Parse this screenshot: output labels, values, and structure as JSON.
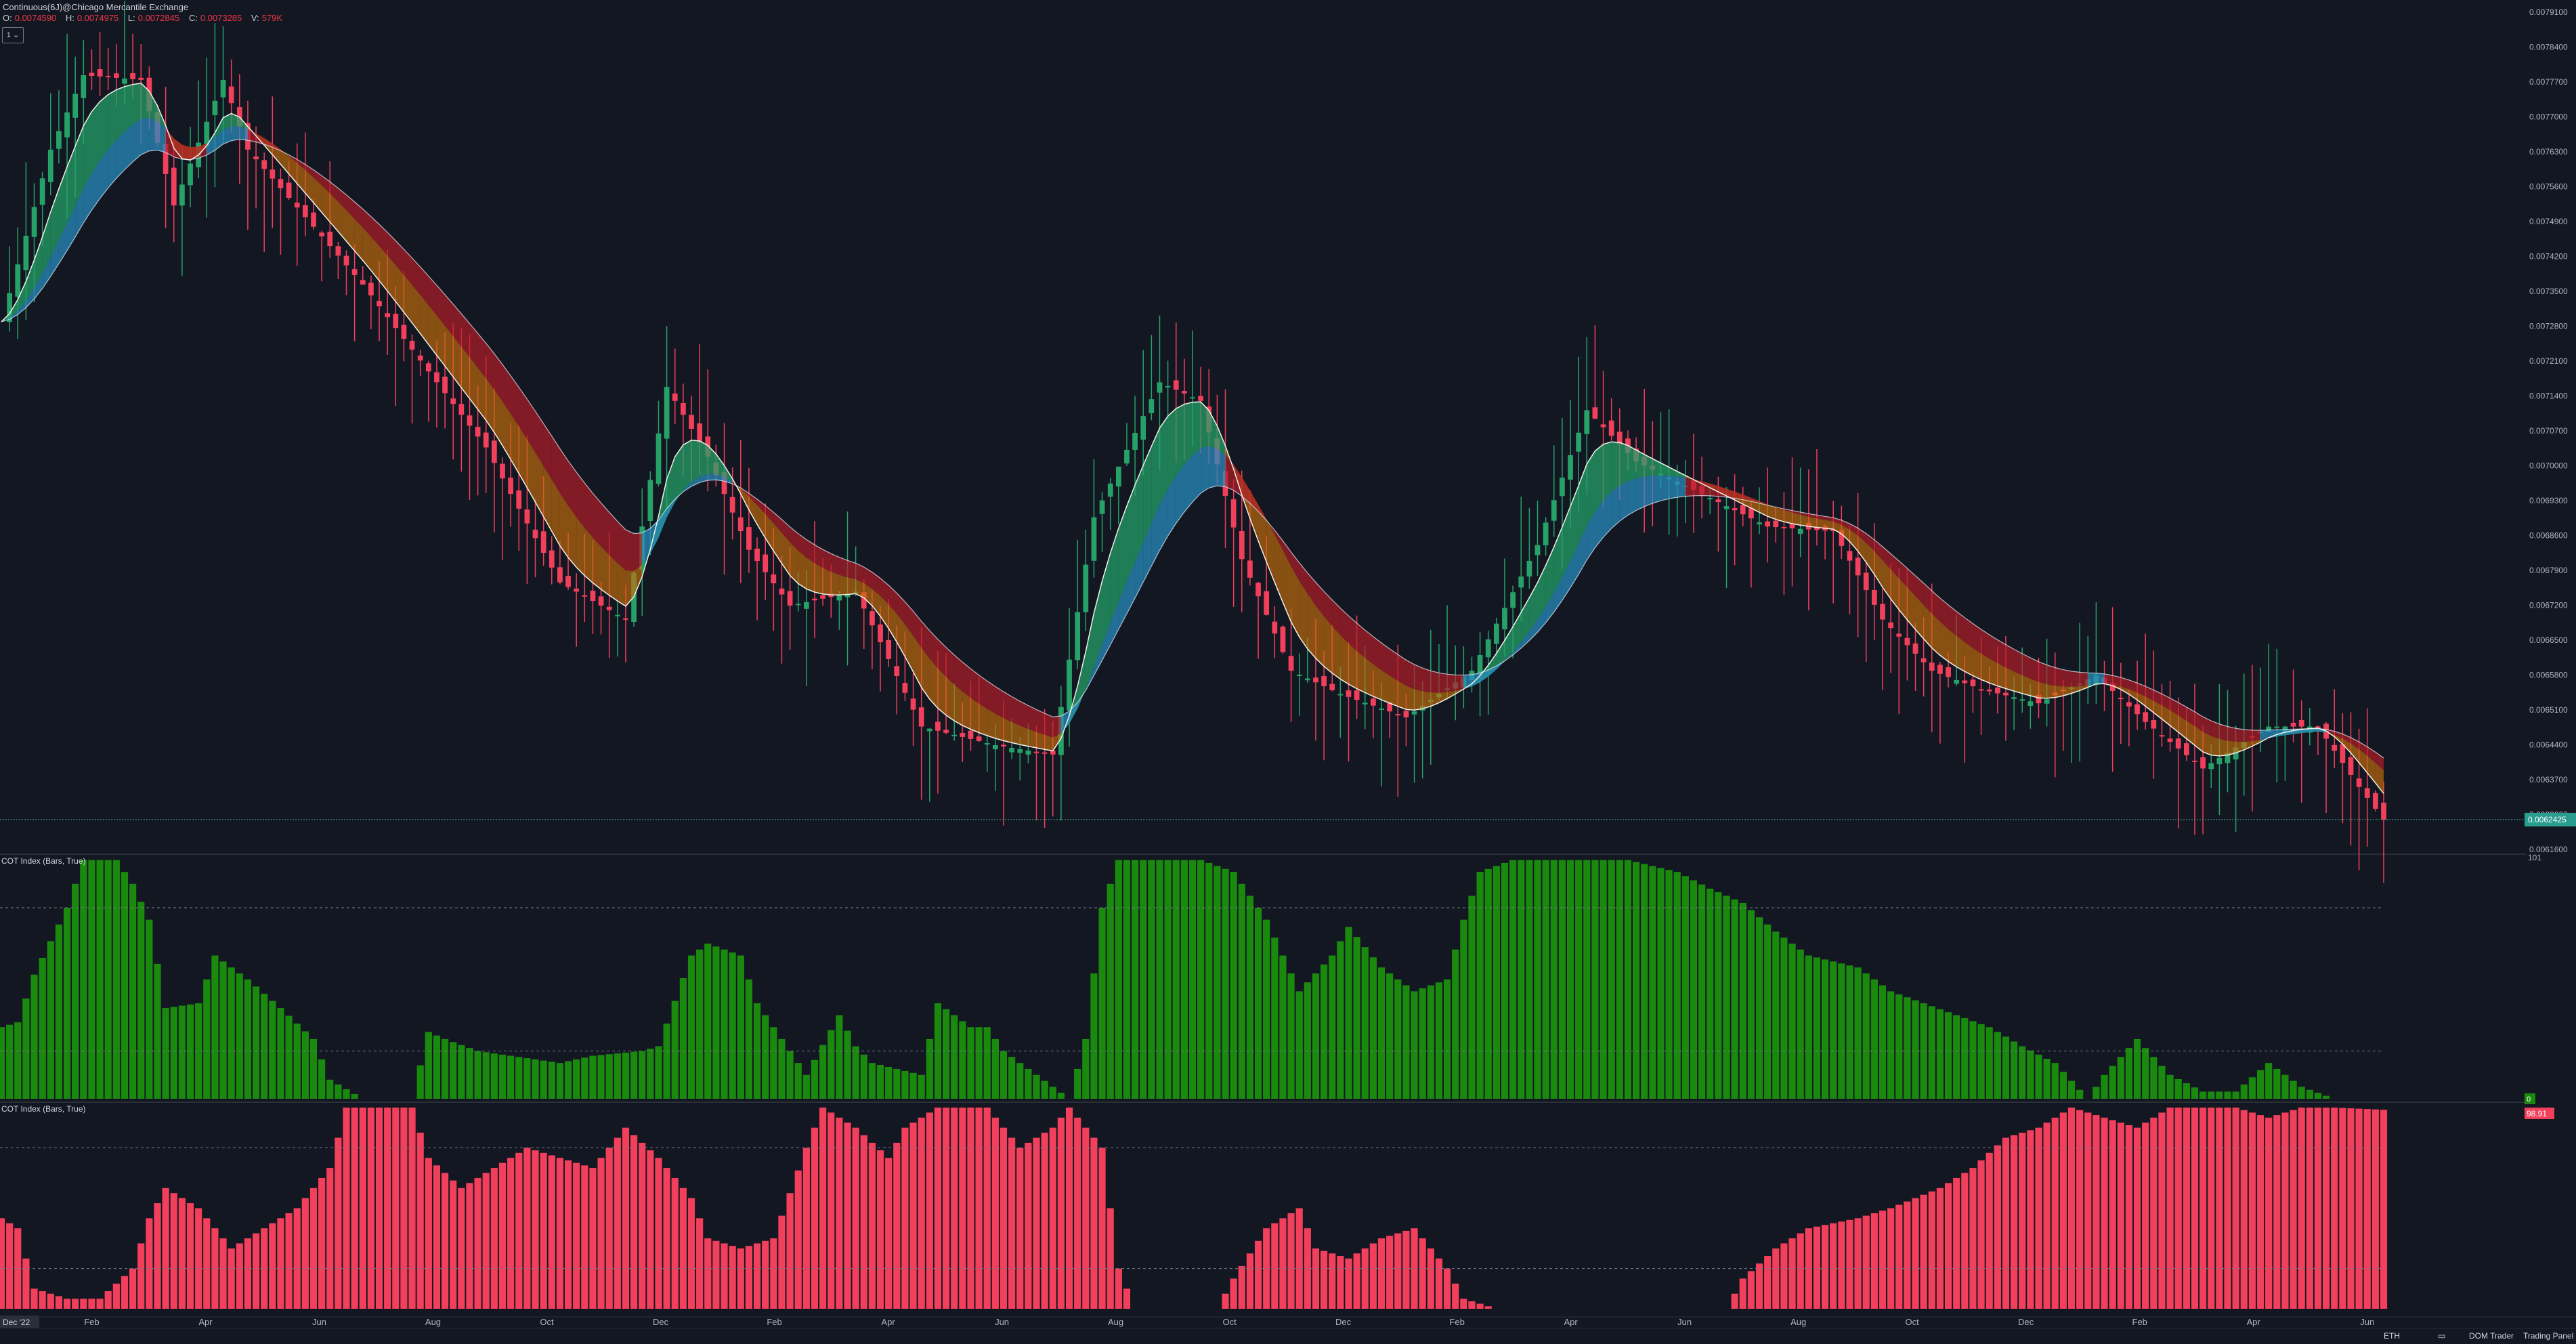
{
  "header": {
    "title": "Continuous(6J)@Chicago Mercantile Exchange",
    "ohlcv": [
      {
        "k": "O:",
        "v": "0.0074590"
      },
      {
        "k": "H:",
        "v": "0.0074975"
      },
      {
        "k": "L:",
        "v": "0.0072845"
      },
      {
        "k": "C:",
        "v": "0.0073285"
      },
      {
        "k": "V:",
        "v": "579K"
      }
    ],
    "timeframe_button": "1 ⌄"
  },
  "price_axis": {
    "ticks": [
      "0.0079100",
      "0.0078400",
      "0.0077700",
      "0.0077000",
      "0.0076300",
      "0.0075600",
      "0.0074900",
      "0.0074200",
      "0.0073500",
      "0.0072800",
      "0.0072100",
      "0.0071400",
      "0.0070700",
      "0.0070000",
      "0.0069300",
      "0.0068600",
      "0.0067900",
      "0.0067200",
      "0.0066500",
      "0.0065800",
      "0.0065100",
      "0.0064400",
      "0.0063700",
      "0.0063000",
      "0.0061600"
    ],
    "current_price_label": "0.0062425"
  },
  "indicator1": {
    "title": "COT Index (Bars, True)",
    "top_label": "101",
    "last_value_label": "0",
    "color": "#1a8a0e"
  },
  "indicator2": {
    "title": "COT Index (Bars, True)",
    "last_value_label": "98.91",
    "color": "#f23f5b"
  },
  "time_axis": {
    "start_label": "Dec '22",
    "labels": [
      "Feb",
      "Apr",
      "Jun",
      "Aug",
      "Oct",
      "Dec",
      "Feb",
      "Apr",
      "Jun",
      "Aug",
      "Oct",
      "Dec",
      "Feb",
      "Apr",
      "Jun",
      "Aug",
      "Oct",
      "Dec",
      "Feb",
      "Apr",
      "Jun"
    ]
  },
  "bottom_bar": {
    "currency": "ETH",
    "dom_trader": "DOM Trader",
    "trading_panel": "Trading Panel"
  },
  "colors": {
    "up": "#26a269",
    "down": "#f23f5b",
    "background": "#131722"
  },
  "chart_data": [
    {
      "type": "candlestick",
      "title": "Continuous(6J)@Chicago Mercantile Exchange",
      "ylim": [
        0.00613,
        0.00795
      ],
      "approx_close_path": [
        [
          0,
          0.00727
        ],
        [
          6,
          0.00764
        ],
        [
          10,
          0.0078
        ],
        [
          17,
          0.00779
        ],
        [
          21,
          0.00752
        ],
        [
          27,
          0.00779
        ],
        [
          30,
          0.00764
        ],
        [
          44,
          0.00735
        ],
        [
          59,
          0.007
        ],
        [
          62,
          0.0069
        ],
        [
          68,
          0.00671
        ],
        [
          76,
          0.00663
        ],
        [
          81,
          0.00713
        ],
        [
          86,
          0.00698
        ],
        [
          91,
          0.00678
        ],
        [
          96,
          0.00666
        ],
        [
          104,
          0.00669
        ],
        [
          112,
          0.0064
        ],
        [
          121,
          0.00636
        ],
        [
          128,
          0.00634
        ],
        [
          133,
          0.00685
        ],
        [
          141,
          0.00714
        ],
        [
          146,
          0.0071
        ],
        [
          151,
          0.00676
        ],
        [
          157,
          0.00652
        ],
        [
          163,
          0.00647
        ],
        [
          171,
          0.00642
        ],
        [
          179,
          0.00652
        ],
        [
          187,
          0.00679
        ],
        [
          193,
          0.00708
        ],
        [
          199,
          0.00697
        ],
        [
          207,
          0.0069
        ],
        [
          215,
          0.00683
        ],
        [
          223,
          0.00682
        ],
        [
          229,
          0.00663
        ],
        [
          235,
          0.00652
        ],
        [
          241,
          0.00648
        ],
        [
          248,
          0.00645
        ],
        [
          255,
          0.00651
        ],
        [
          261,
          0.00641
        ],
        [
          268,
          0.00631
        ],
        [
          276,
          0.0064
        ],
        [
          282,
          0.0064
        ],
        [
          287,
          0.00627
        ],
        [
          290,
          0.0062
        ]
      ]
    },
    {
      "type": "bar",
      "title": "COT Index (Bars, True)",
      "ylim": [
        0,
        101
      ],
      "approx_path": [
        [
          0,
          30
        ],
        [
          2,
          32
        ],
        [
          4,
          52
        ],
        [
          8,
          80
        ],
        [
          10,
          100
        ],
        [
          14,
          100
        ],
        [
          16,
          90
        ],
        [
          18,
          75
        ],
        [
          20,
          38
        ],
        [
          24,
          40
        ],
        [
          26,
          60
        ],
        [
          30,
          50
        ],
        [
          34,
          38
        ],
        [
          38,
          25
        ],
        [
          40,
          8
        ],
        [
          44,
          0
        ],
        [
          50,
          0
        ],
        [
          52,
          28
        ],
        [
          54,
          25
        ],
        [
          58,
          20
        ],
        [
          62,
          18
        ],
        [
          68,
          15
        ],
        [
          72,
          18
        ],
        [
          78,
          20
        ],
        [
          80,
          22
        ],
        [
          84,
          60
        ],
        [
          86,
          65
        ],
        [
          90,
          60
        ],
        [
          92,
          40
        ],
        [
          96,
          20
        ],
        [
          98,
          10
        ],
        [
          102,
          35
        ],
        [
          104,
          22
        ],
        [
          106,
          15
        ],
        [
          112,
          10
        ],
        [
          114,
          40
        ],
        [
          118,
          30
        ],
        [
          120,
          30
        ],
        [
          122,
          20
        ],
        [
          126,
          10
        ],
        [
          130,
          0
        ],
        [
          132,
          25
        ],
        [
          134,
          80
        ],
        [
          136,
          100
        ],
        [
          146,
          100
        ],
        [
          150,
          95
        ],
        [
          154,
          75
        ],
        [
          158,
          45
        ],
        [
          162,
          60
        ],
        [
          164,
          72
        ],
        [
          168,
          55
        ],
        [
          172,
          45
        ],
        [
          176,
          50
        ],
        [
          178,
          75
        ],
        [
          180,
          95
        ],
        [
          184,
          100
        ],
        [
          190,
          100
        ],
        [
          194,
          100
        ],
        [
          198,
          100
        ],
        [
          204,
          95
        ],
        [
          208,
          88
        ],
        [
          212,
          82
        ],
        [
          216,
          70
        ],
        [
          220,
          60
        ],
        [
          226,
          55
        ],
        [
          230,
          45
        ],
        [
          234,
          40
        ],
        [
          238,
          35
        ],
        [
          242,
          30
        ],
        [
          246,
          22
        ],
        [
          250,
          15
        ],
        [
          254,
          0
        ],
        [
          256,
          10
        ],
        [
          260,
          25
        ],
        [
          264,
          10
        ],
        [
          268,
          3
        ],
        [
          272,
          3
        ],
        [
          276,
          15
        ],
        [
          280,
          5
        ],
        [
          284,
          0
        ],
        [
          290,
          0
        ]
      ]
    },
    {
      "type": "bar",
      "title": "COT Index (Bars, True)",
      "ylim": [
        0,
        101
      ],
      "approx_path": [
        [
          0,
          45
        ],
        [
          2,
          40
        ],
        [
          4,
          10
        ],
        [
          8,
          5
        ],
        [
          12,
          5
        ],
        [
          16,
          20
        ],
        [
          18,
          45
        ],
        [
          20,
          60
        ],
        [
          24,
          50
        ],
        [
          28,
          30
        ],
        [
          32,
          40
        ],
        [
          36,
          50
        ],
        [
          40,
          70
        ],
        [
          42,
          100
        ],
        [
          50,
          100
        ],
        [
          52,
          75
        ],
        [
          56,
          60
        ],
        [
          60,
          70
        ],
        [
          64,
          80
        ],
        [
          68,
          75
        ],
        [
          72,
          70
        ],
        [
          76,
          90
        ],
        [
          80,
          75
        ],
        [
          84,
          55
        ],
        [
          86,
          35
        ],
        [
          90,
          30
        ],
        [
          94,
          35
        ],
        [
          98,
          80
        ],
        [
          100,
          100
        ],
        [
          104,
          90
        ],
        [
          108,
          75
        ],
        [
          110,
          90
        ],
        [
          114,
          100
        ],
        [
          120,
          100
        ],
        [
          124,
          80
        ],
        [
          128,
          90
        ],
        [
          130,
          100
        ],
        [
          134,
          80
        ],
        [
          136,
          20
        ],
        [
          138,
          0
        ],
        [
          148,
          0
        ],
        [
          150,
          15
        ],
        [
          154,
          40
        ],
        [
          158,
          50
        ],
        [
          160,
          30
        ],
        [
          164,
          25
        ],
        [
          168,
          35
        ],
        [
          172,
          40
        ],
        [
          176,
          20
        ],
        [
          178,
          5
        ],
        [
          182,
          0
        ],
        [
          200,
          0
        ],
        [
          210,
          0
        ],
        [
          212,
          15
        ],
        [
          216,
          30
        ],
        [
          220,
          40
        ],
        [
          226,
          45
        ],
        [
          230,
          50
        ],
        [
          236,
          60
        ],
        [
          240,
          70
        ],
        [
          244,
          85
        ],
        [
          248,
          90
        ],
        [
          252,
          100
        ],
        [
          256,
          95
        ],
        [
          260,
          90
        ],
        [
          264,
          100
        ],
        [
          268,
          100
        ],
        [
          272,
          100
        ],
        [
          276,
          95
        ],
        [
          280,
          100
        ],
        [
          284,
          100
        ],
        [
          290,
          98.91
        ]
      ]
    }
  ]
}
